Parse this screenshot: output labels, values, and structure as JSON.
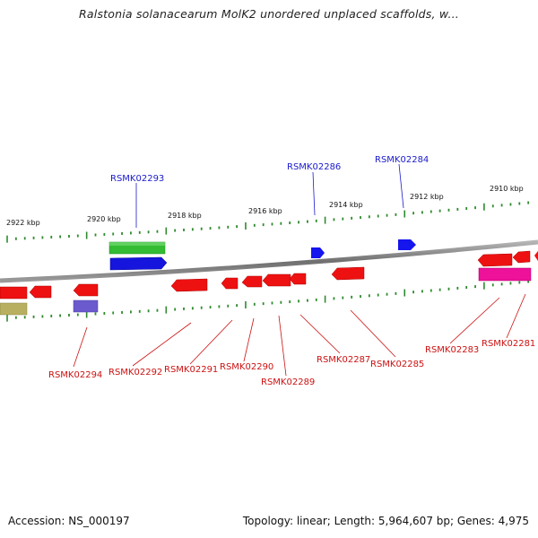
{
  "title": "Ralstonia solanacearum MolK2 unordered unplaced scaffolds, w...",
  "footer": {
    "accession": "Accession: NS_000197",
    "stats": "Topology: linear; Length: 5,964,607 bp; Genes: 4,975"
  },
  "colors": {
    "forward_label": "#1a1acc",
    "reverse_label": "#cc1111",
    "backbone": "#8a8a8a",
    "tick": "#2e8b2e"
  },
  "scale": {
    "labels": [
      "2922 kbp",
      "2920 kbp",
      "2918 kbp",
      "2916 kbp",
      "2914 kbp",
      "2912 kbp",
      "2910 kbp"
    ]
  },
  "genes_top": [
    {
      "label": "RSMK02293",
      "color": "blue"
    },
    {
      "label": "RSMK02286",
      "color": "blue"
    },
    {
      "label": "RSMK02284",
      "color": "blue"
    }
  ],
  "genes_bottom": [
    {
      "label": "RSMK02294"
    },
    {
      "label": "RSMK02292"
    },
    {
      "label": "RSMK02291"
    },
    {
      "label": "RSMK02290"
    },
    {
      "label": "RSMK02289"
    },
    {
      "label": "RSMK02287"
    },
    {
      "label": "RSMK02285"
    },
    {
      "label": "RSMK02283"
    },
    {
      "label": "RSMK02281"
    }
  ]
}
